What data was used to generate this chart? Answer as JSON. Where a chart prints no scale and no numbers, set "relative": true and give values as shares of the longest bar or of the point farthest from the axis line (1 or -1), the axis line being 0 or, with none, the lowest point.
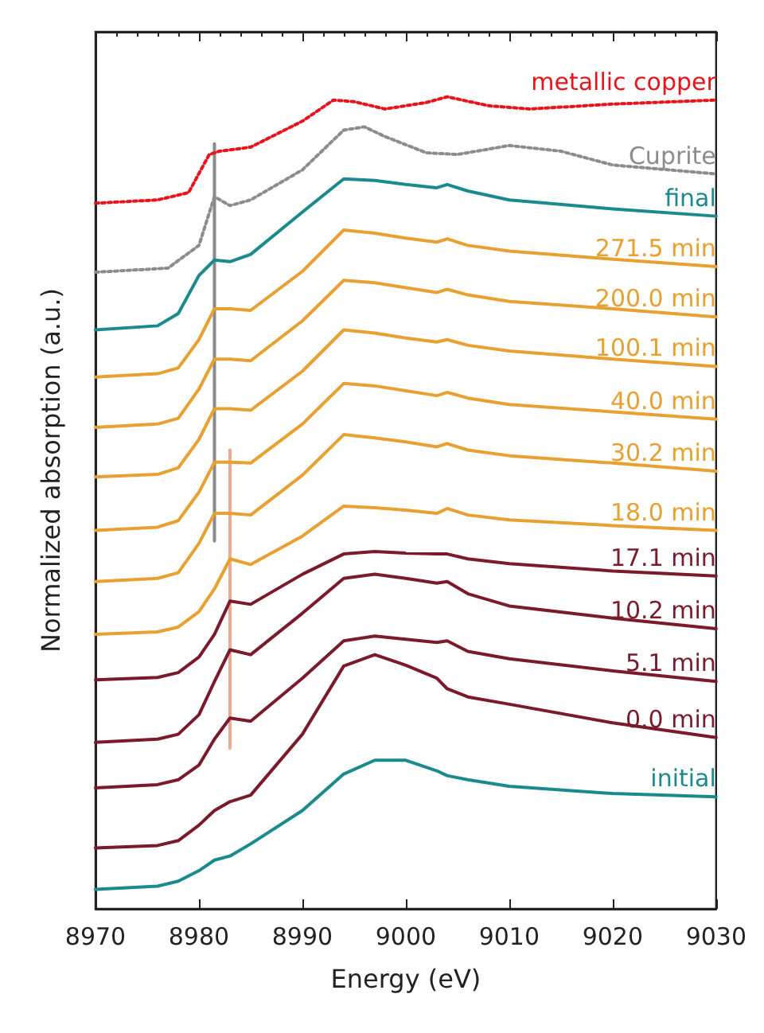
{
  "chart_data": {
    "type": "line",
    "relative": true,
    "xlabel": "Energy (eV)",
    "ylabel": "Normalized absorption (a.u.)",
    "xlim": [
      8970,
      9030
    ],
    "xticks": [
      8970,
      8980,
      8990,
      9000,
      9010,
      9020,
      9030
    ],
    "tick_labels": "x",
    "marker": "none",
    "line_style": "solid",
    "series": [
      {
        "name": "metallic copper",
        "color": "#e8141c",
        "line_style": "dotted",
        "x": [
          8970,
          8976,
          8979,
          8981,
          8982,
          8985,
          8990,
          8993,
          8995,
          8998,
          9002,
          9004,
          9008,
          9012,
          9020,
          9030
        ],
        "values": [
          0.869,
          0.873,
          0.882,
          0.929,
          0.933,
          0.938,
          0.97,
          0.996,
          0.994,
          0.985,
          0.993,
          1,
          0.989,
          0.985,
          0.991,
          0.996
        ]
      },
      {
        "name": "Cuprite",
        "color": "#8c8c8c",
        "line_style": "dotted",
        "x": [
          8970,
          8977,
          8980,
          8981.5,
          8983,
          8985,
          8990,
          8994,
          8996,
          8998,
          9002,
          9005,
          9010,
          9015,
          9020,
          9030
        ],
        "values": [
          0.784,
          0.789,
          0.817,
          0.877,
          0.866,
          0.873,
          0.91,
          0.959,
          0.963,
          0.951,
          0.931,
          0.929,
          0.94,
          0.933,
          0.916,
          0.905
        ]
      },
      {
        "name": "final",
        "color": "#1a8a8c",
        "x": [
          8970,
          8976,
          8978,
          8980,
          8981.5,
          8983,
          8985,
          8990,
          8994,
          8997,
          9000,
          9003,
          9004,
          9006,
          9010,
          9020,
          9030
        ],
        "values": [
          0.713,
          0.718,
          0.733,
          0.78,
          0.799,
          0.797,
          0.806,
          0.858,
          0.899,
          0.897,
          0.892,
          0.888,
          0.892,
          0.884,
          0.873,
          0.862,
          0.853
        ]
      },
      {
        "name": "271.5 min",
        "color": "#e8a030",
        "x": [
          8970,
          8976,
          8978,
          8980,
          8981.5,
          8983,
          8985,
          8990,
          8994,
          8997,
          9000,
          9003,
          9004,
          9006,
          9010,
          9020,
          9030
        ],
        "values": [
          0.655,
          0.659,
          0.666,
          0.701,
          0.739,
          0.739,
          0.737,
          0.785,
          0.836,
          0.832,
          0.826,
          0.821,
          0.825,
          0.817,
          0.81,
          0.8,
          0.791
        ]
      },
      {
        "name": "200.0 min",
        "color": "#e8a030",
        "x": [
          8970,
          8976,
          8978,
          8980,
          8981.5,
          8983,
          8985,
          8990,
          8994,
          8997,
          9000,
          9003,
          9004,
          9006,
          9010,
          9020,
          9030
        ],
        "values": [
          0.593,
          0.597,
          0.604,
          0.64,
          0.677,
          0.677,
          0.675,
          0.724,
          0.774,
          0.771,
          0.765,
          0.759,
          0.763,
          0.756,
          0.748,
          0.739,
          0.729
        ]
      },
      {
        "name": "100.1 min",
        "color": "#e8a030",
        "x": [
          8970,
          8976,
          8978,
          8980,
          8981.5,
          8983,
          8985,
          8990,
          8994,
          8997,
          9000,
          9003,
          9004,
          9006,
          9010,
          9020,
          9030
        ],
        "values": [
          0.532,
          0.535,
          0.543,
          0.578,
          0.616,
          0.616,
          0.614,
          0.662,
          0.713,
          0.709,
          0.703,
          0.698,
          0.701,
          0.694,
          0.687,
          0.677,
          0.668
        ]
      },
      {
        "name": "40.0 min",
        "color": "#e8a030",
        "x": [
          8970,
          8976,
          8978,
          8980,
          8981.5,
          8983,
          8985,
          8990,
          8994,
          8997,
          9000,
          9003,
          9004,
          9006,
          9010,
          9020,
          9030
        ],
        "values": [
          0.466,
          0.47,
          0.478,
          0.513,
          0.55,
          0.55,
          0.549,
          0.597,
          0.647,
          0.644,
          0.638,
          0.632,
          0.636,
          0.629,
          0.621,
          0.612,
          0.603
        ]
      },
      {
        "name": "30.2 min",
        "color": "#e8a030",
        "x": [
          8970,
          8976,
          8978,
          8980,
          8981.5,
          8983,
          8985,
          8990,
          8994,
          8997,
          9000,
          9003,
          9004,
          9006,
          9010,
          9020,
          9030
        ],
        "values": [
          0.403,
          0.407,
          0.414,
          0.45,
          0.487,
          0.487,
          0.485,
          0.534,
          0.584,
          0.58,
          0.575,
          0.569,
          0.573,
          0.565,
          0.558,
          0.549,
          0.539
        ]
      },
      {
        "name": "18.0 min",
        "color": "#e8a030",
        "x": [
          8970,
          8976,
          8978,
          8980,
          8981.5,
          8983,
          8985,
          8990,
          8994,
          8997,
          9000,
          9003,
          9004,
          9006,
          9010,
          9020,
          9030
        ],
        "values": [
          0.338,
          0.341,
          0.347,
          0.366,
          0.394,
          0.431,
          0.424,
          0.459,
          0.496,
          0.494,
          0.491,
          0.487,
          0.493,
          0.485,
          0.479,
          0.472,
          0.466
        ]
      },
      {
        "name": "17.1 min",
        "color": "#7a1a2a",
        "x": [
          8970,
          8976,
          8978,
          8980,
          8981.5,
          8983,
          8985,
          8990,
          8994,
          8997,
          9000,
          9003,
          9004,
          9006,
          9010,
          9020,
          9030
        ],
        "values": [
          0.282,
          0.285,
          0.291,
          0.31,
          0.338,
          0.379,
          0.375,
          0.412,
          0.437,
          0.44,
          0.438,
          0.437,
          0.437,
          0.431,
          0.425,
          0.416,
          0.41
        ]
      },
      {
        "name": "10.2 min",
        "color": "#7a1a2a",
        "x": [
          8970,
          8976,
          8978,
          8980,
          8981.5,
          8983,
          8985,
          8990,
          8994,
          8997,
          9000,
          9003,
          9004,
          9006,
          9010,
          9020,
          9030
        ],
        "values": [
          0.205,
          0.209,
          0.215,
          0.239,
          0.28,
          0.319,
          0.313,
          0.364,
          0.407,
          0.412,
          0.407,
          0.401,
          0.403,
          0.388,
          0.373,
          0.358,
          0.345
        ]
      },
      {
        "name": "5.1 min",
        "color": "#7a1a2a",
        "x": [
          8970,
          8976,
          8978,
          8980,
          8981.5,
          8983,
          8985,
          8990,
          8994,
          8997,
          9000,
          9003,
          9004,
          9006,
          9010,
          9020,
          9030
        ],
        "values": [
          0.149,
          0.153,
          0.159,
          0.177,
          0.209,
          0.235,
          0.231,
          0.284,
          0.33,
          0.336,
          0.332,
          0.328,
          0.33,
          0.317,
          0.308,
          0.293,
          0.28
        ]
      },
      {
        "name": "0.0 min",
        "color": "#7a1a2a",
        "x": [
          8970,
          8976,
          8978,
          8980,
          8981.5,
          8983,
          8985,
          8990,
          8994,
          8997,
          9000,
          9003,
          9004,
          9006,
          9010,
          9020,
          9030
        ],
        "values": [
          0.075,
          0.078,
          0.084,
          0.103,
          0.121,
          0.132,
          0.14,
          0.215,
          0.299,
          0.313,
          0.3,
          0.284,
          0.271,
          0.261,
          0.252,
          0.229,
          0.211
        ]
      },
      {
        "name": "initial",
        "color": "#1a8a8c",
        "x": [
          8970,
          8976,
          8978,
          8980,
          8981.5,
          8983,
          8985,
          8990,
          8994,
          8997,
          9000,
          9003,
          9004,
          9006,
          9010,
          9020,
          9030
        ],
        "values": [
          0.024,
          0.028,
          0.034,
          0.047,
          0.06,
          0.065,
          0.08,
          0.121,
          0.166,
          0.183,
          0.183,
          0.17,
          0.164,
          0.159,
          0.151,
          0.142,
          0.138
        ]
      },
      {
        "color": "#8a8a8a",
        "x": [
          8981.5,
          8981.5
        ],
        "values": [
          0.942,
          0.453
        ]
      },
      {
        "color": "#f0a890",
        "x": [
          8983,
          8983
        ],
        "values": [
          0.565,
          0.198
        ]
      }
    ]
  }
}
